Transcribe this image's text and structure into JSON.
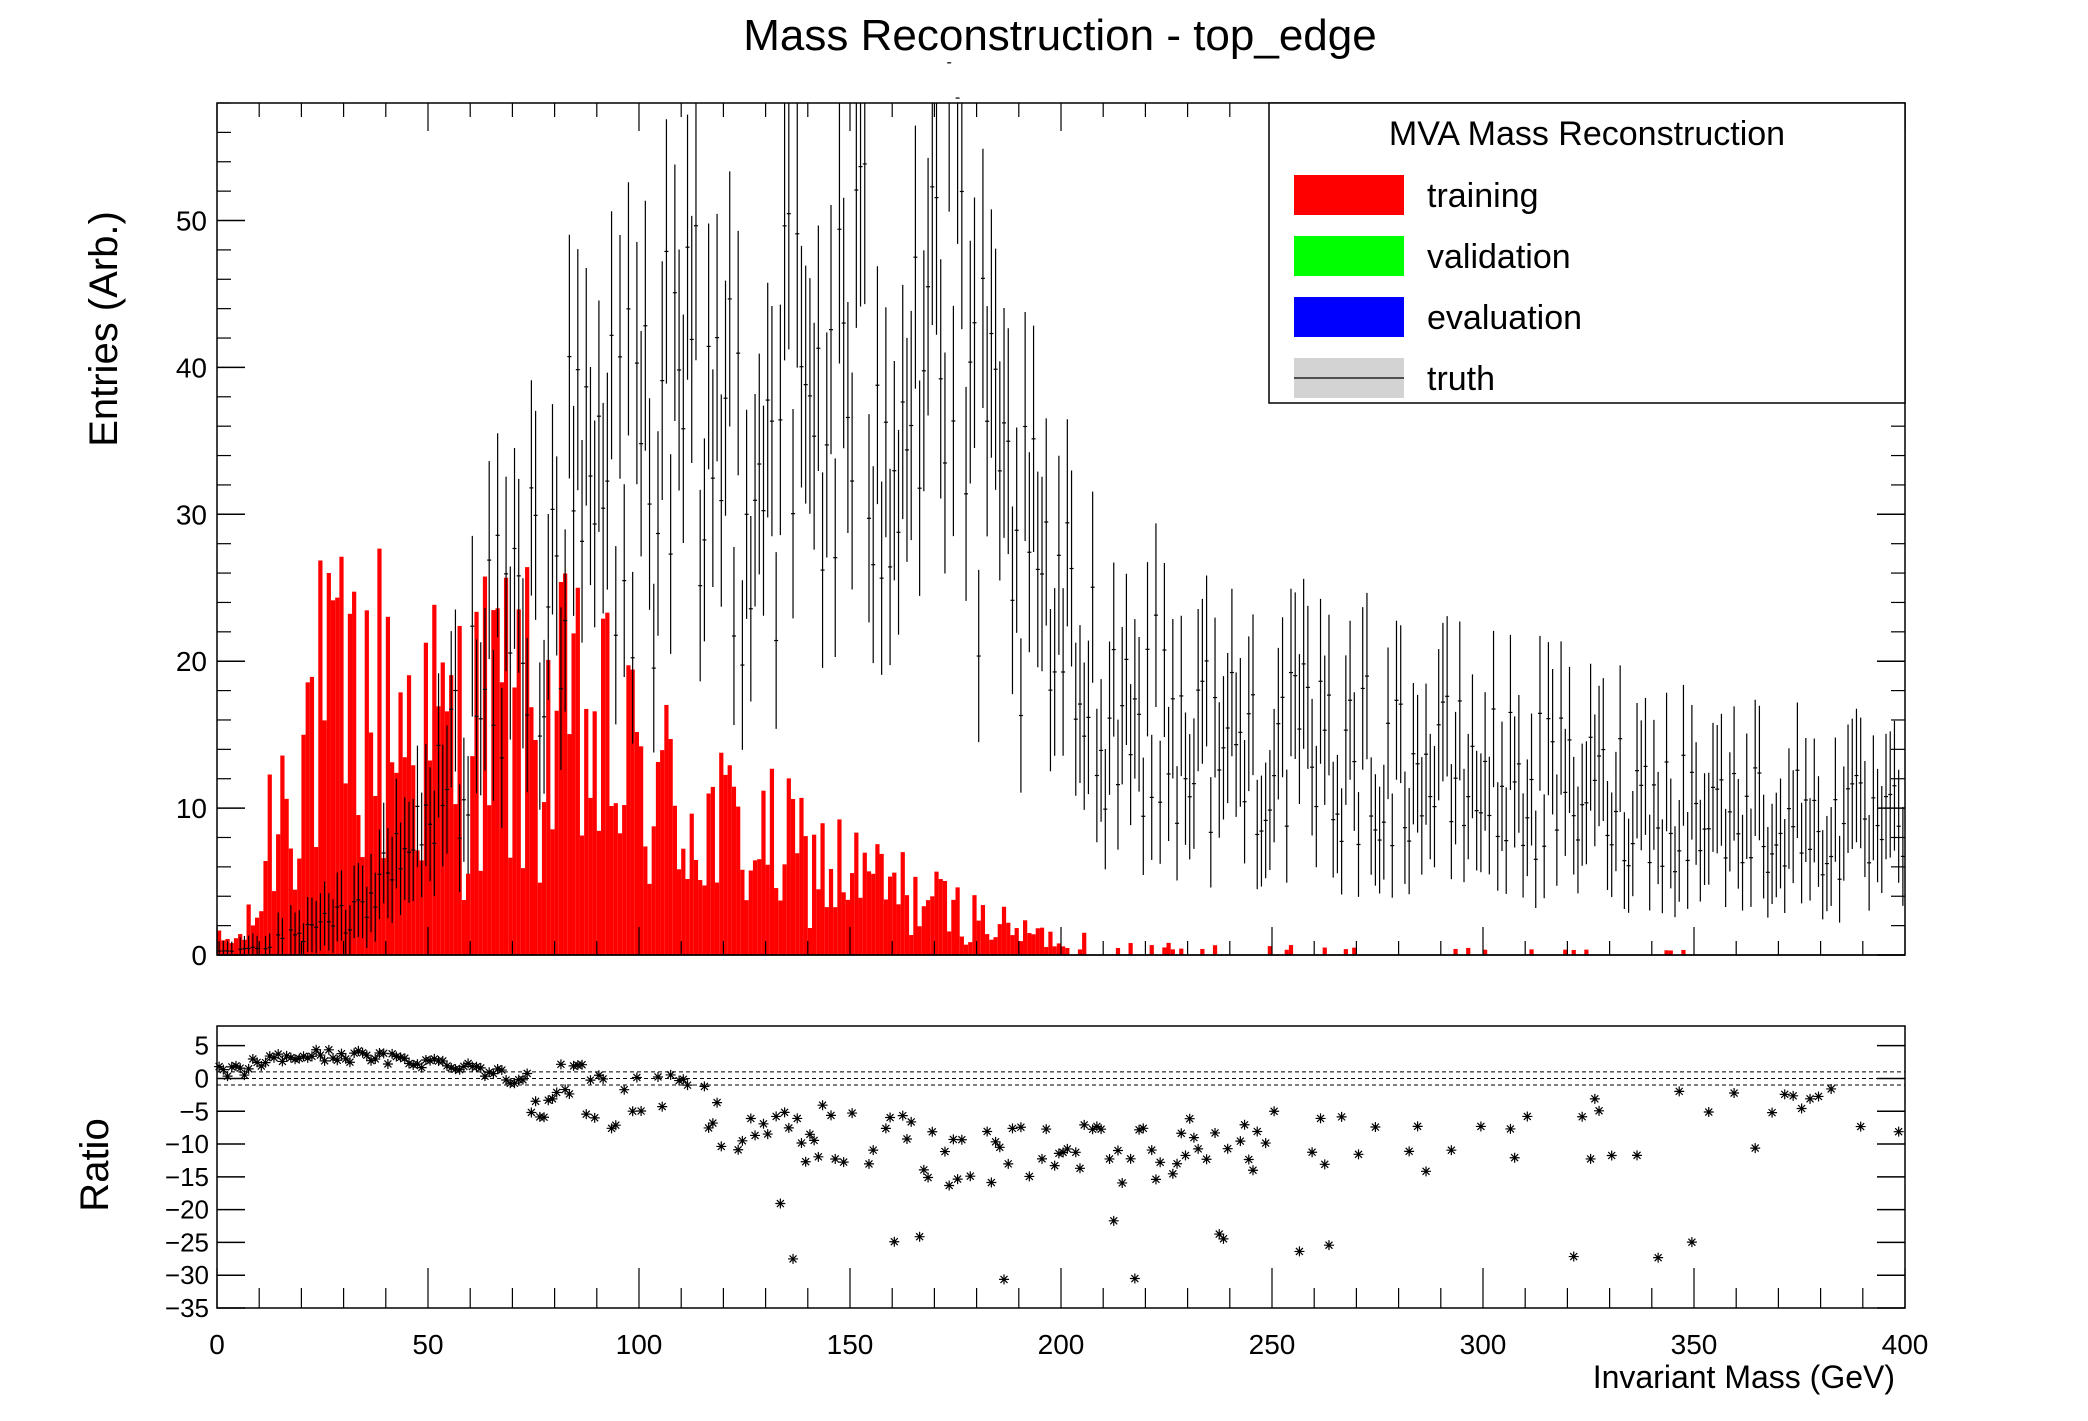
{
  "chart_data": [
    {
      "type": "histogram",
      "title": "Mass Reconstruction - top_edge",
      "ylabel": "Entries (Arb.)",
      "xlim": [
        0,
        400
      ],
      "ylim": [
        0,
        58
      ],
      "bin_width_gev": 1,
      "x_ticks": [
        0,
        50,
        100,
        150,
        200,
        250,
        300,
        350,
        400
      ],
      "y_ticks": [
        0,
        10,
        20,
        30,
        40,
        50
      ],
      "y_tick_labels": [
        "0",
        "10",
        "20",
        "30",
        "40",
        "50"
      ],
      "grid": false,
      "legend": {
        "placement": "top-right",
        "title": "MVA Mass Reconstruction",
        "entries": [
          {
            "label": "training",
            "color": "#ff0000",
            "style": "fill"
          },
          {
            "label": "validation",
            "color": "#00ff00",
            "style": "fill"
          },
          {
            "label": "evaluation",
            "color": "#0000ff",
            "style": "fill"
          },
          {
            "label": "truth",
            "color": "#d3d3d3",
            "style": "fill+line"
          }
        ]
      },
      "series": [
        {
          "name": "training",
          "style": "filled-histogram",
          "color": "#ff0000",
          "anchors_x": [
            0,
            5,
            10,
            12,
            15,
            20,
            25,
            30,
            35,
            40,
            45,
            50,
            55,
            60,
            65,
            70,
            75,
            80,
            85,
            90,
            95,
            100,
            105,
            110,
            115,
            120,
            125,
            130,
            135,
            140,
            145,
            150,
            155,
            160,
            165,
            170,
            175,
            180,
            185,
            190,
            195,
            200,
            210,
            220,
            250,
            300,
            350,
            400
          ],
          "anchors_y": [
            1,
            1,
            3,
            8,
            11,
            15,
            16,
            16,
            17,
            17,
            16,
            15,
            14,
            15,
            16,
            16,
            15,
            15,
            15,
            14,
            13,
            12,
            11,
            10,
            9,
            8.5,
            8,
            7.5,
            7,
            6.5,
            6,
            5.5,
            5,
            4.5,
            4,
            3.5,
            3,
            2.5,
            2,
            1.6,
            1.3,
            1,
            0.8,
            0.6,
            0.4,
            0.3,
            0.2,
            0.15
          ]
        },
        {
          "name": "truth",
          "style": "points-with-errors",
          "color": "#000000",
          "anchors_x": [
            0,
            5,
            10,
            15,
            20,
            30,
            40,
            50,
            60,
            70,
            80,
            90,
            100,
            110,
            120,
            130,
            140,
            150,
            160,
            165,
            170,
            175,
            180,
            190,
            200,
            210,
            230,
            250,
            300,
            350,
            400
          ],
          "anchors_y": [
            0.2,
            0.3,
            0.5,
            1,
            1.5,
            2.5,
            5,
            9,
            16,
            22,
            27,
            31,
            33,
            34,
            35,
            36,
            37,
            38,
            41,
            44,
            46,
            42,
            33,
            26,
            21,
            18,
            15,
            14,
            12,
            10,
            8
          ]
        }
      ]
    },
    {
      "type": "scatter",
      "ylabel": "Ratio",
      "xlabel": "Invariant Mass (GeV)",
      "xlim": [
        0,
        400
      ],
      "ylim": [
        -35,
        8
      ],
      "x_ticks": [
        0,
        50,
        100,
        150,
        200,
        250,
        300,
        350,
        400
      ],
      "x_tick_labels": [
        "0",
        "50",
        "100",
        "150",
        "200",
        "250",
        "300",
        "350",
        "400"
      ],
      "y_ticks": [
        5,
        0,
        -5,
        -10,
        -15,
        -20,
        -25,
        -30,
        -35
      ],
      "y_tick_labels": [
        "5",
        "0",
        "−5",
        "−10",
        "−15",
        "−20",
        "−25",
        "−30",
        "−35"
      ],
      "reference_lines_y": [
        -1,
        0,
        1
      ],
      "series": [
        {
          "name": "ratio",
          "marker": "star",
          "color": "#000000",
          "anchors_x": [
            0,
            5,
            10,
            20,
            30,
            40,
            50,
            60,
            70,
            80,
            90,
            100,
            120,
            140,
            160,
            180,
            200,
            220,
            250,
            300,
            350,
            400
          ],
          "anchors_y": [
            1,
            1,
            2.5,
            3.5,
            3.5,
            3,
            2.5,
            2,
            0,
            -1.5,
            -2.5,
            -3.5,
            -6,
            -8,
            -10,
            -12,
            -12,
            -11,
            -10,
            -9,
            -6,
            -6
          ]
        }
      ]
    }
  ]
}
